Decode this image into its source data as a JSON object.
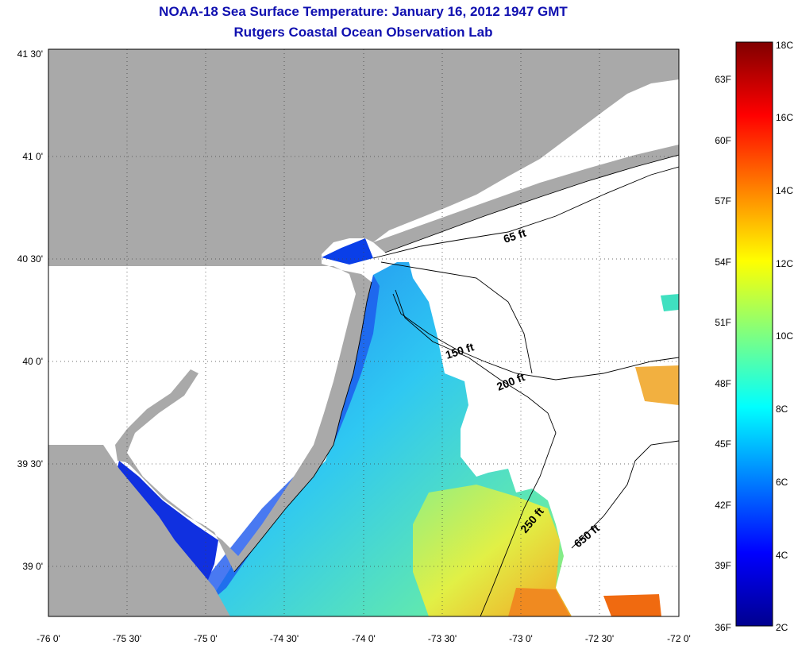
{
  "title": "NOAA-18 Sea Surface Temperature:  January 16, 2012 1947 GMT",
  "subtitle": "Rutgers Coastal Ocean Observation Lab",
  "colors": {
    "land": "#a9a9a9",
    "ocean_no_data": "#ffffff",
    "title": "#1010b0"
  },
  "map": {
    "lon_ticks": [
      "-76 0'",
      "-75 30'",
      "-75 0'",
      "-74 30'",
      "-74 0'",
      "-73 30'",
      "-73 0'",
      "-72 30'",
      "-72 0'"
    ],
    "lat_ticks": [
      "41 30'",
      "41 0'",
      "40 30'",
      "40 0'",
      "39 30'",
      "39 0'"
    ],
    "lon_values": [
      -76.0,
      -75.5,
      -75.0,
      -74.5,
      -74.0,
      -73.5,
      -73.0,
      -72.5,
      -72.0
    ],
    "lat_values": [
      41.5,
      41.0,
      40.5,
      40.0,
      39.5,
      39.0
    ],
    "grid": true,
    "isobath_labels": [
      "65 ft",
      "150 ft",
      "200 ft",
      "250 ft",
      "650 ft"
    ]
  },
  "colorbar": {
    "celsius_labels": [
      "18C",
      "16C",
      "14C",
      "12C",
      "10C",
      "8C",
      "6C",
      "4C",
      "2C"
    ],
    "celsius_values": [
      18,
      16,
      14,
      12,
      10,
      8,
      6,
      4,
      2
    ],
    "fahrenheit_labels": [
      "63F",
      "60F",
      "57F",
      "54F",
      "51F",
      "48F",
      "45F",
      "42F",
      "39F",
      "36F"
    ],
    "fahrenheit_values": [
      63,
      60,
      57,
      54,
      51,
      48,
      45,
      42,
      39,
      36
    ],
    "range_celsius": [
      2,
      18
    ]
  }
}
